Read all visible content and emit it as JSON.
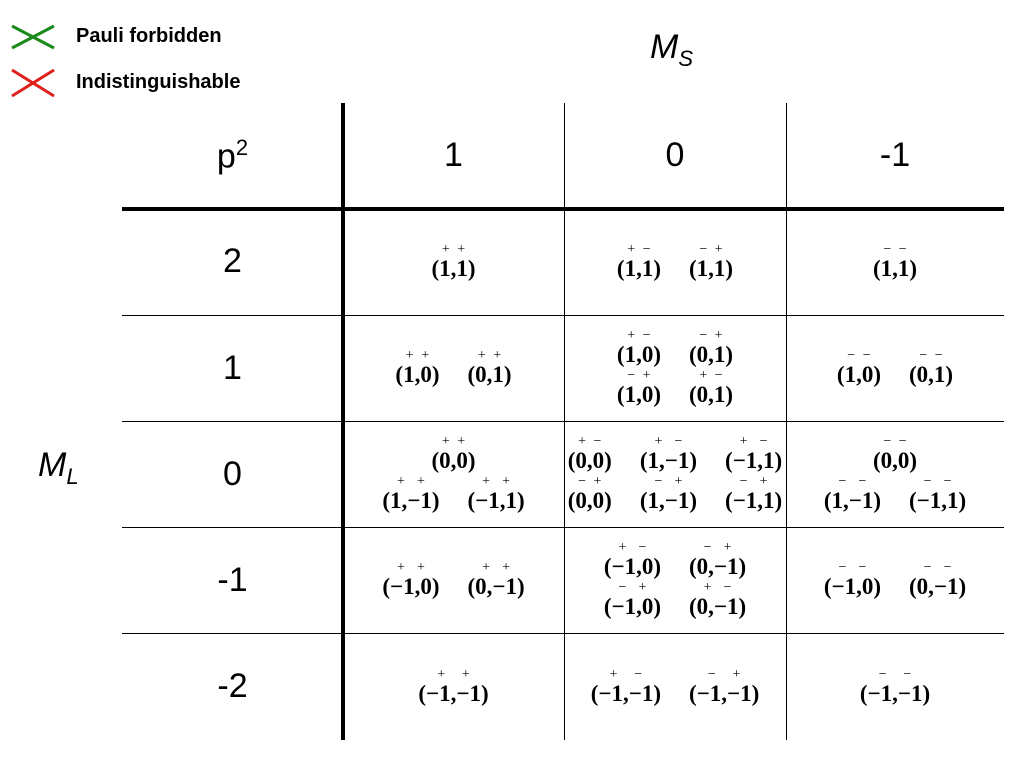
{
  "legend": [
    {
      "label": "Pauli forbidden"
    },
    {
      "label": "Indistinguishable"
    }
  ],
  "ms_label": {
    "base": "M",
    "sub": "S"
  },
  "ml_label": {
    "base": "M",
    "sub": "L"
  },
  "table": {
    "corner": {
      "base": "p",
      "sup": "2"
    },
    "columns": [
      "1",
      "0",
      "-1"
    ],
    "rows": [
      {
        "label": "2",
        "cells": [
          [
            [
              {
                "label": "(1,1)",
                "spins": [
                  "+",
                  "+"
                ]
              }
            ]
          ],
          [
            [
              {
                "label": "(1,1)",
                "spins": [
                  "+",
                  "−"
                ]
              },
              {
                "label": "(1,1)",
                "spins": [
                  "−",
                  "+"
                ]
              }
            ]
          ],
          [
            [
              {
                "label": "(1,1)",
                "spins": [
                  "−",
                  "−"
                ]
              }
            ]
          ]
        ]
      },
      {
        "label": "1",
        "cells": [
          [
            [
              {
                "label": "(1,0)",
                "spins": [
                  "+",
                  "+"
                ]
              },
              {
                "label": "(0,1)",
                "spins": [
                  "+",
                  "+"
                ]
              }
            ]
          ],
          [
            [
              {
                "label": "(1,0)",
                "spins": [
                  "+",
                  "−"
                ]
              },
              {
                "label": "(0,1)",
                "spins": [
                  "−",
                  "+"
                ]
              }
            ],
            [
              {
                "label": "(1,0)",
                "spins": [
                  "−",
                  "+"
                ]
              },
              {
                "label": "(0,1)",
                "spins": [
                  "+",
                  "−"
                ]
              }
            ]
          ],
          [
            [
              {
                "label": "(1,0)",
                "spins": [
                  "−",
                  "−"
                ]
              },
              {
                "label": "(0,1)",
                "spins": [
                  "−",
                  "−"
                ]
              }
            ]
          ]
        ]
      },
      {
        "label": "0",
        "cells": [
          [
            [
              {
                "label": "(0,0)",
                "spins": [
                  "+",
                  "+"
                ]
              }
            ],
            [
              {
                "label": "(1,−1)",
                "spins": [
                  "+",
                  "+"
                ]
              },
              {
                "label": "(−1,1)",
                "spins": [
                  "+",
                  "+"
                ]
              }
            ]
          ],
          [
            [
              {
                "label": "(0,0)",
                "spins": [
                  "+",
                  "−"
                ]
              },
              {
                "label": "(1,−1)",
                "spins": [
                  "+",
                  "−"
                ]
              },
              {
                "label": "(−1,1)",
                "spins": [
                  "+",
                  "−"
                ]
              }
            ],
            [
              {
                "label": "(0,0)",
                "spins": [
                  "−",
                  "+"
                ]
              },
              {
                "label": "(1,−1)",
                "spins": [
                  "−",
                  "+"
                ]
              },
              {
                "label": "(−1,1)",
                "spins": [
                  "−",
                  "+"
                ]
              }
            ]
          ],
          [
            [
              {
                "label": "(0,0)",
                "spins": [
                  "−",
                  "−"
                ]
              }
            ],
            [
              {
                "label": "(1,−1)",
                "spins": [
                  "−",
                  "−"
                ]
              },
              {
                "label": "(−1,1)",
                "spins": [
                  "−",
                  "−"
                ]
              }
            ]
          ]
        ]
      },
      {
        "label": "-1",
        "cells": [
          [
            [
              {
                "label": "(−1,0)",
                "spins": [
                  "+",
                  "+"
                ]
              },
              {
                "label": "(0,−1)",
                "spins": [
                  "+",
                  "+"
                ]
              }
            ]
          ],
          [
            [
              {
                "label": "(−1,0)",
                "spins": [
                  "+",
                  "−"
                ]
              },
              {
                "label": "(0,−1)",
                "spins": [
                  "−",
                  "+"
                ]
              }
            ],
            [
              {
                "label": "(−1,0)",
                "spins": [
                  "−",
                  "+"
                ]
              },
              {
                "label": "(0,−1)",
                "spins": [
                  "+",
                  "−"
                ]
              }
            ]
          ],
          [
            [
              {
                "label": "(−1,0)",
                "spins": [
                  "−",
                  "−"
                ]
              },
              {
                "label": "(0,−1)",
                "spins": [
                  "−",
                  "−"
                ]
              }
            ]
          ]
        ]
      },
      {
        "label": "-2",
        "cells": [
          [
            [
              {
                "label": "(−1,−1)",
                "spins": [
                  "+",
                  "+"
                ]
              }
            ]
          ],
          [
            [
              {
                "label": "(−1,−1)",
                "spins": [
                  "+",
                  "−"
                ]
              },
              {
                "label": "(−1,−1)",
                "spins": [
                  "−",
                  "+"
                ]
              }
            ]
          ],
          [
            [
              {
                "label": "(−1,−1)",
                "spins": [
                  "−",
                  "−"
                ]
              }
            ]
          ]
        ]
      }
    ]
  }
}
